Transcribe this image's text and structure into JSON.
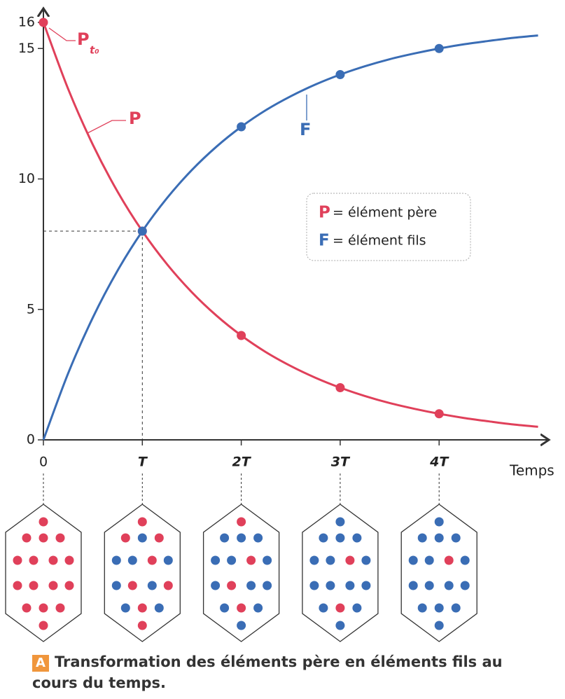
{
  "chart_data": {
    "type": "line",
    "x_label": "Temps",
    "x": [
      0,
      0.25,
      0.5,
      0.75,
      1,
      1.25,
      1.5,
      1.75,
      2,
      2.25,
      2.5,
      2.75,
      3,
      3.25,
      3.5,
      3.75,
      4,
      4.25,
      4.5,
      4.75,
      5
    ],
    "series": [
      {
        "name": "P",
        "legend": "= élément père",
        "color": "#e0405a",
        "values": [
          16,
          13.45,
          11.31,
          9.51,
          8,
          6.73,
          5.66,
          4.76,
          4,
          3.36,
          2.83,
          2.38,
          2,
          1.68,
          1.41,
          1.19,
          1,
          0.84,
          0.71,
          0.59,
          0.5
        ],
        "marker_x": [
          0,
          1,
          2,
          3,
          4
        ]
      },
      {
        "name": "F",
        "legend": "= élément fils",
        "color": "#3a6db5",
        "values": [
          0,
          2.55,
          4.69,
          6.49,
          8,
          9.27,
          10.34,
          11.24,
          12,
          12.64,
          13.17,
          13.62,
          14,
          14.32,
          14.59,
          14.81,
          15,
          15.16,
          15.29,
          15.41,
          15.5
        ],
        "marker_x": [
          1,
          2,
          3,
          4
        ]
      }
    ],
    "start_label": "P",
    "start_label_sub": "t₀",
    "xlim": [
      0,
      5.1
    ],
    "ylim": [
      0,
      16.5
    ],
    "xticks": [
      0,
      {
        "value": 1,
        "label": "T"
      },
      {
        "value": 2,
        "label": "2T"
      },
      {
        "value": 3,
        "label": "3T"
      },
      {
        "value": 4,
        "label": "4T"
      }
    ],
    "yticks": [
      0,
      5,
      10,
      15,
      16
    ],
    "caption_badge": "A",
    "caption": "Transformation des éléments père en éléments fils au cours du temps."
  }
}
